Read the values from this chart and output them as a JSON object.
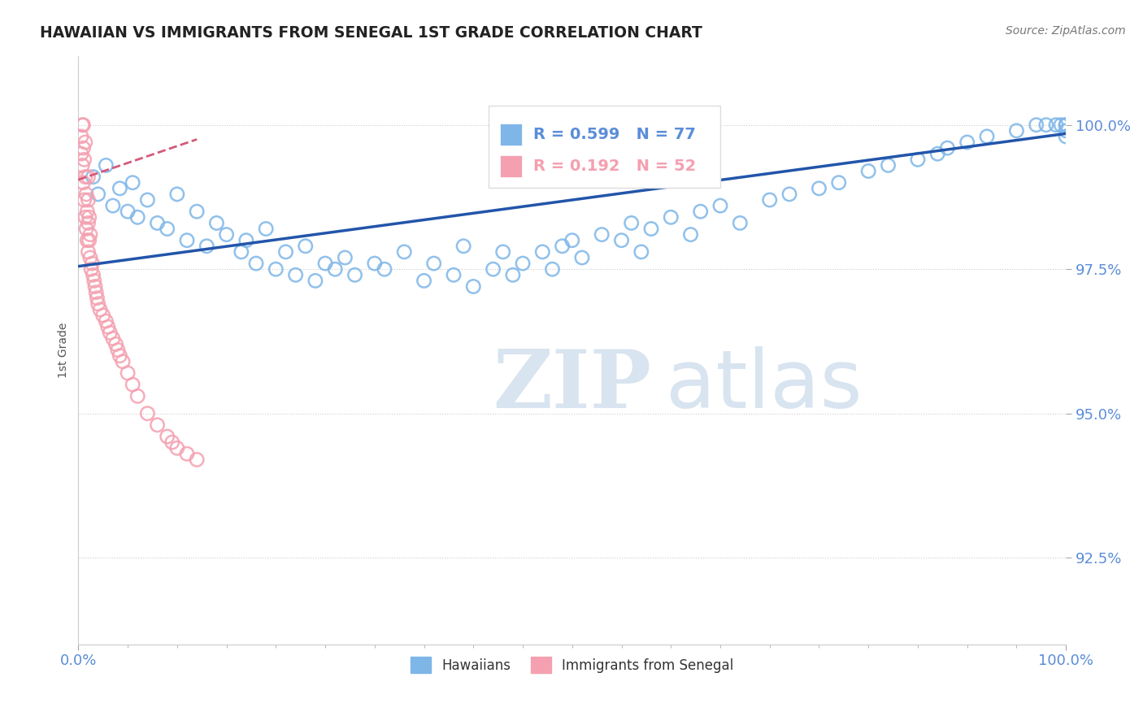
{
  "title": "HAWAIIAN VS IMMIGRANTS FROM SENEGAL 1ST GRADE CORRELATION CHART",
  "source_text": "Source: ZipAtlas.com",
  "ylabel": "1st Grade",
  "x_min": 0.0,
  "x_max": 100.0,
  "y_min": 91.0,
  "y_max": 101.2,
  "y_ticks": [
    92.5,
    95.0,
    97.5,
    100.0
  ],
  "blue_R": 0.599,
  "blue_N": 77,
  "pink_R": 0.192,
  "pink_N": 52,
  "blue_color": "#7EB6E8",
  "pink_color": "#F4A0B0",
  "blue_line_color": "#2255AA",
  "pink_line_color": "#D45A7A",
  "legend_label_blue": "Hawaiians",
  "legend_label_pink": "Immigrants from Senegal",
  "watermark_zip": "ZIP",
  "watermark_atlas": "atlas",
  "watermark_color": "#D8E4F0",
  "background_color": "#FFFFFF",
  "grid_color": "#CCCCCC",
  "tick_color": "#5B8DD9",
  "blue_scatter_x": [
    1.5,
    2.0,
    2.8,
    3.5,
    4.2,
    5.0,
    5.5,
    6.0,
    7.0,
    8.0,
    9.0,
    10.0,
    11.0,
    12.0,
    13.0,
    14.0,
    15.0,
    16.5,
    17.0,
    18.0,
    19.0,
    20.0,
    21.0,
    22.0,
    23.0,
    24.0,
    25.0,
    26.0,
    27.0,
    28.0,
    30.0,
    31.0,
    33.0,
    35.0,
    36.0,
    38.0,
    39.0,
    40.0,
    42.0,
    43.0,
    44.0,
    45.0,
    47.0,
    48.0,
    49.0,
    50.0,
    51.0,
    53.0,
    55.0,
    56.0,
    57.0,
    58.0,
    60.0,
    62.0,
    63.0,
    65.0,
    67.0,
    70.0,
    72.0,
    75.0,
    77.0,
    80.0,
    82.0,
    85.0,
    87.0,
    88.0,
    90.0,
    92.0,
    95.0,
    97.0,
    98.0,
    99.0,
    99.5,
    100.0,
    100.0,
    100.0,
    100.0
  ],
  "blue_scatter_y": [
    99.1,
    98.8,
    99.3,
    98.6,
    98.9,
    98.5,
    99.0,
    98.4,
    98.7,
    98.3,
    98.2,
    98.8,
    98.0,
    98.5,
    97.9,
    98.3,
    98.1,
    97.8,
    98.0,
    97.6,
    98.2,
    97.5,
    97.8,
    97.4,
    97.9,
    97.3,
    97.6,
    97.5,
    97.7,
    97.4,
    97.6,
    97.5,
    97.8,
    97.3,
    97.6,
    97.4,
    97.9,
    97.2,
    97.5,
    97.8,
    97.4,
    97.6,
    97.8,
    97.5,
    97.9,
    98.0,
    97.7,
    98.1,
    98.0,
    98.3,
    97.8,
    98.2,
    98.4,
    98.1,
    98.5,
    98.6,
    98.3,
    98.7,
    98.8,
    98.9,
    99.0,
    99.2,
    99.3,
    99.4,
    99.5,
    99.6,
    99.7,
    99.8,
    99.9,
    100.0,
    100.0,
    100.0,
    100.0,
    100.0,
    100.0,
    99.8,
    99.9
  ],
  "pink_scatter_x": [
    0.3,
    0.3,
    0.4,
    0.4,
    0.5,
    0.5,
    0.5,
    0.6,
    0.6,
    0.7,
    0.7,
    0.7,
    0.8,
    0.8,
    0.9,
    0.9,
    1.0,
    1.0,
    1.0,
    1.0,
    1.1,
    1.1,
    1.2,
    1.2,
    1.3,
    1.4,
    1.5,
    1.6,
    1.7,
    1.8,
    1.9,
    2.0,
    2.2,
    2.5,
    2.8,
    3.0,
    3.2,
    3.5,
    3.8,
    4.0,
    4.2,
    4.5,
    5.0,
    5.5,
    6.0,
    7.0,
    8.0,
    9.0,
    9.5,
    10.0,
    11.0,
    12.0
  ],
  "pink_scatter_y": [
    99.5,
    99.8,
    99.3,
    100.0,
    99.0,
    99.6,
    100.0,
    98.7,
    99.4,
    98.4,
    99.1,
    99.7,
    98.2,
    98.8,
    98.0,
    98.5,
    97.8,
    98.3,
    98.7,
    99.1,
    98.0,
    98.4,
    97.7,
    98.1,
    97.5,
    97.6,
    97.4,
    97.3,
    97.2,
    97.1,
    97.0,
    96.9,
    96.8,
    96.7,
    96.6,
    96.5,
    96.4,
    96.3,
    96.2,
    96.1,
    96.0,
    95.9,
    95.7,
    95.5,
    95.3,
    95.0,
    94.8,
    94.6,
    94.5,
    94.4,
    94.3,
    94.2
  ],
  "blue_line_x": [
    0.0,
    100.0
  ],
  "blue_line_y": [
    97.55,
    99.85
  ],
  "pink_line_x": [
    0.0,
    12.0
  ],
  "pink_line_y": [
    99.05,
    99.75
  ]
}
